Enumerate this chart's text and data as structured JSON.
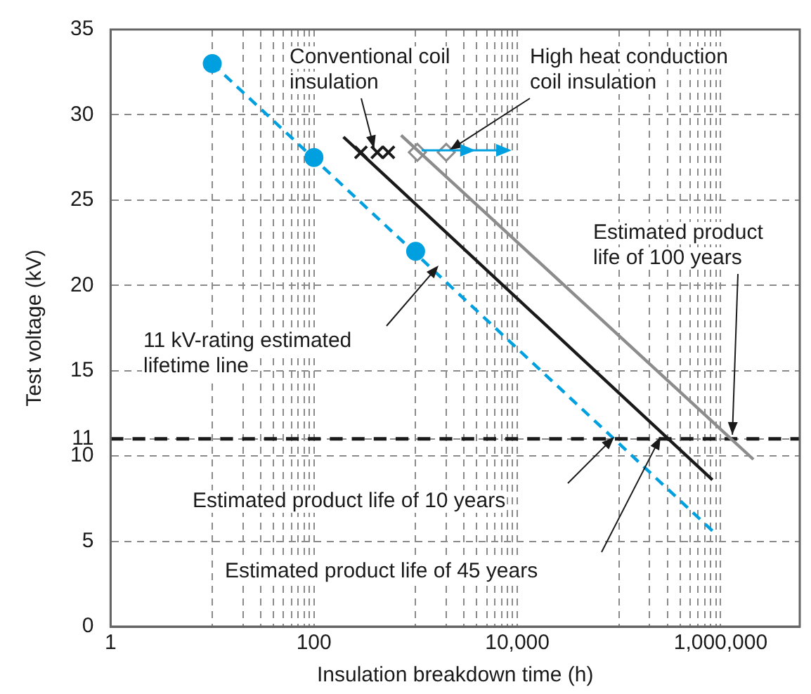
{
  "chart_data": {
    "type": "line",
    "xlabel": "Insulation breakdown time (h)",
    "ylabel": "Test voltage (kV)",
    "log": "x",
    "grid": true,
    "legend": false,
    "xlim": [
      1,
      6000000
    ],
    "xticks": [
      1,
      {
        "value": 10,
        "label": null
      },
      {
        "value": 20,
        "label": null
      },
      {
        "value": 30,
        "label": null
      },
      {
        "value": 40,
        "label": null
      },
      {
        "value": 50,
        "label": null
      },
      {
        "value": 60,
        "label": null
      },
      {
        "value": 70,
        "label": null
      },
      {
        "value": 80,
        "label": null
      },
      {
        "value": 90,
        "label": null
      },
      {
        "value": 100,
        "label": "100"
      },
      {
        "value": 1000,
        "label": null
      },
      {
        "value": 2000,
        "label": null
      },
      {
        "value": 3000,
        "label": null
      },
      {
        "value": 4000,
        "label": null
      },
      {
        "value": 5000,
        "label": null
      },
      {
        "value": 6000,
        "label": null
      },
      {
        "value": 7000,
        "label": null
      },
      {
        "value": 8000,
        "label": null
      },
      {
        "value": 9000,
        "label": null
      },
      {
        "value": 10000,
        "label": "10,000"
      },
      {
        "value": 100000,
        "label": null
      },
      {
        "value": 200000,
        "label": null
      },
      {
        "value": 300000,
        "label": null
      },
      {
        "value": 400000,
        "label": null
      },
      {
        "value": 500000,
        "label": null
      },
      {
        "value": 600000,
        "label": null
      },
      {
        "value": 700000,
        "label": null
      },
      {
        "value": 800000,
        "label": null
      },
      {
        "value": 900000,
        "label": null
      },
      {
        "value": 1000000,
        "label": "1,000,000"
      }
    ],
    "ylim": [
      0,
      35
    ],
    "yticks": [
      0,
      5,
      10,
      11,
      15,
      20,
      25,
      30,
      35
    ],
    "series": [
      {
        "type": "scatter",
        "color": "#00a0e0",
        "marker": "circle",
        "x": [
          10,
          100,
          1000
        ],
        "values": [
          33,
          27.5,
          22
        ]
      },
      {
        "color": "#00a0e0",
        "marker": "none",
        "line_style": "dashed",
        "x": [
          10,
          870000
        ],
        "values": [
          33,
          5.5
        ]
      },
      {
        "color": "#1a1a1a",
        "marker": "none",
        "line_style": "solid",
        "x": [
          195,
          830000
        ],
        "values": [
          28.7,
          8.6
        ]
      },
      {
        "color": "#8c8c8c",
        "marker": "none",
        "line_style": "solid",
        "x": [
          720,
          2100000
        ],
        "values": [
          28.8,
          9.8
        ]
      },
      {
        "type": "scatter",
        "color": "#1a1a1a",
        "marker": "cross",
        "x": [
          290,
          420,
          540
        ],
        "values": [
          27.8,
          27.8,
          27.8
        ]
      },
      {
        "type": "scatter",
        "color": "#8c8c8c",
        "marker": "diamond",
        "x": [
          1040,
          2000
        ],
        "values": [
          27.8,
          27.8
        ]
      }
    ],
    "ref_lines": [
      {
        "axis": "y",
        "value": 11,
        "color": "#1a1a1a",
        "line_style": "dashed"
      }
    ],
    "annotations": [
      {
        "text": "Conventional coil insulation",
        "x": 400,
        "y": 27.8
      },
      {
        "text": "High heat conduction coil insulation",
        "x": 2000,
        "y": 27.8
      },
      "11 kV-rating estimated lifetime line",
      {
        "text": "Estimated product life of 100 years",
        "x": 1300000,
        "y": 11
      },
      "Estimated product life of 10 years",
      "Estimated product life of 45 years"
    ]
  }
}
